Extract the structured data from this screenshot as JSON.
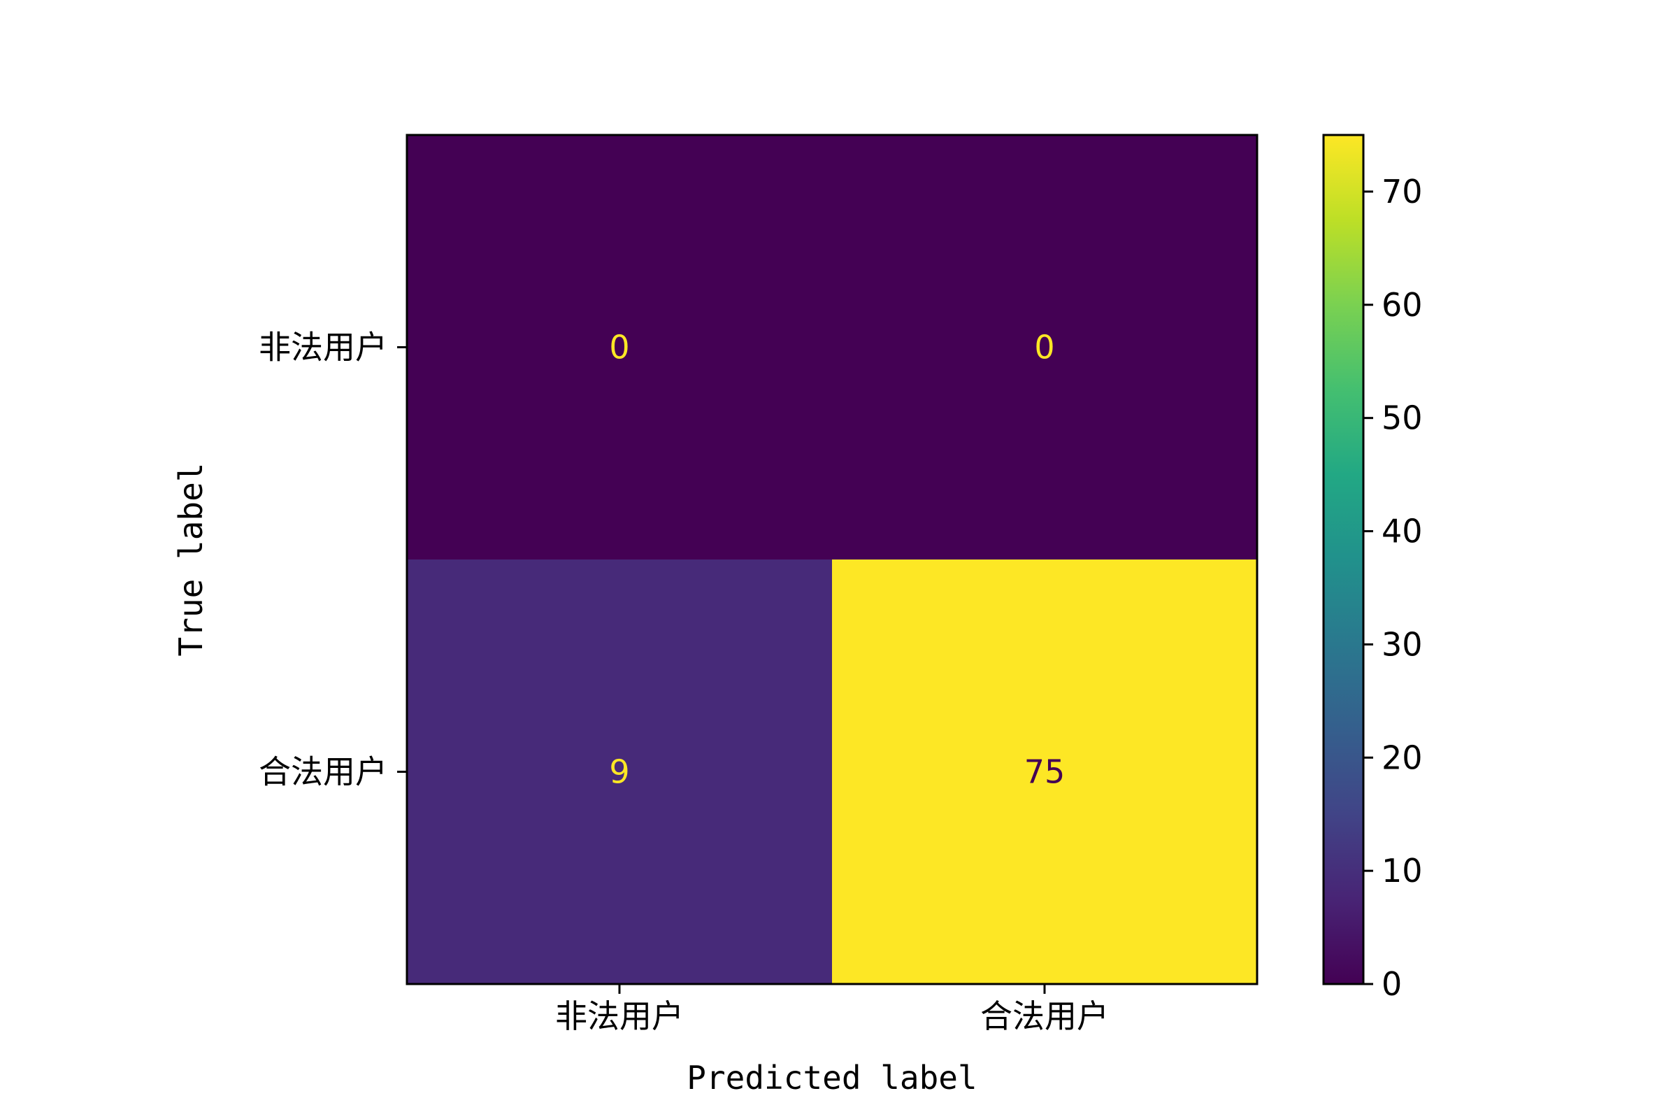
{
  "chart_data": {
    "type": "heatmap",
    "title": "",
    "xlabel": "Predicted label",
    "ylabel": "True label",
    "x_categories": [
      "非法用户",
      "合法用户"
    ],
    "y_categories": [
      "非法用户",
      "合法用户"
    ],
    "values": [
      [
        0,
        0
      ],
      [
        9,
        75
      ]
    ],
    "colormap": "viridis",
    "colorbar": {
      "min": 0,
      "max": 75,
      "ticks": [
        0,
        10,
        20,
        30,
        40,
        50,
        60,
        70
      ]
    },
    "grid": false,
    "text_color_on_dark": "#fde725",
    "text_color_on_light": "#440154"
  }
}
